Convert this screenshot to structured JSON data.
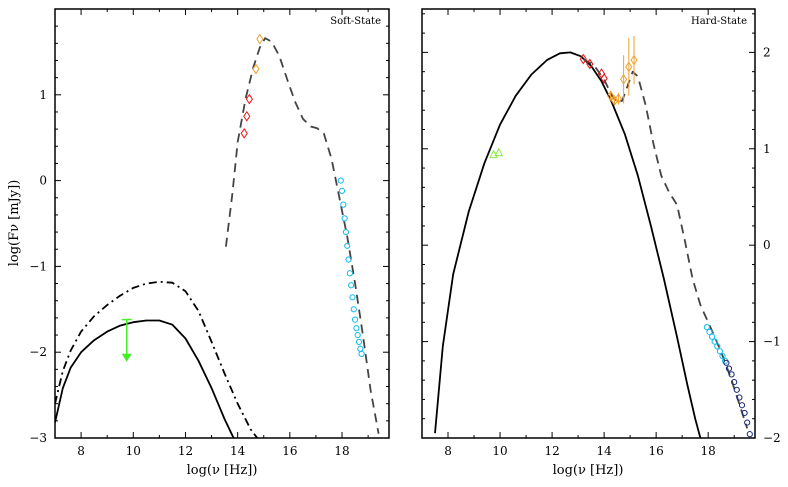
{
  "chart_data": [
    {
      "type": "scatter",
      "title": "Soft-State",
      "xlabel": "log(ν [Hz])",
      "ylabel": "log(Fν [mJy])",
      "xlim": [
        7,
        19.8
      ],
      "ylim": [
        -3,
        2.0
      ],
      "xticks": [
        8,
        10,
        12,
        14,
        16,
        18
      ],
      "xtick_labels": [
        "8",
        "10",
        "12",
        "14",
        "16",
        "18"
      ],
      "yticks": [
        -3,
        -2,
        -1,
        0,
        1
      ],
      "ytick_labels": [
        "−3",
        "−2",
        "−1",
        "0",
        "1"
      ],
      "y_axis_side": "left",
      "series": [
        {
          "name": "jet model (solid)",
          "style": "solid",
          "color": "#000000",
          "x": [
            7.0,
            7.3,
            7.6,
            8.0,
            8.5,
            9.0,
            9.5,
            10.0,
            10.5,
            11.0,
            11.5,
            12.0,
            12.5,
            13.0,
            13.5,
            14.0
          ],
          "y": [
            -2.82,
            -2.42,
            -2.18,
            -2.0,
            -1.86,
            -1.76,
            -1.69,
            -1.65,
            -1.63,
            -1.63,
            -1.68,
            -1.84,
            -2.1,
            -2.42,
            -2.78,
            -3.1
          ]
        },
        {
          "name": "jet model (dash-dot)",
          "style": "dashdot",
          "color": "#000000",
          "x": [
            7.0,
            7.3,
            7.6,
            8.0,
            8.5,
            9.0,
            9.5,
            10.0,
            10.5,
            11.0,
            11.5,
            12.0,
            12.5,
            13.0,
            13.5,
            14.0,
            14.5,
            15.0
          ],
          "y": [
            -2.6,
            -2.22,
            -1.98,
            -1.76,
            -1.58,
            -1.45,
            -1.34,
            -1.25,
            -1.2,
            -1.18,
            -1.19,
            -1.29,
            -1.52,
            -1.88,
            -2.25,
            -2.6,
            -2.9,
            -3.1
          ]
        },
        {
          "name": "total model (dashed)",
          "style": "dashed",
          "color": "#444444",
          "x": [
            13.55,
            13.8,
            14.0,
            14.3,
            14.6,
            14.85,
            15.05,
            15.3,
            15.6,
            15.9,
            16.2,
            16.5,
            16.8,
            17.05,
            17.3,
            17.6,
            17.9,
            18.2,
            18.5,
            18.8,
            19.1,
            19.4
          ],
          "y": [
            -0.77,
            -0.15,
            0.45,
            0.95,
            1.32,
            1.55,
            1.66,
            1.62,
            1.45,
            1.18,
            0.92,
            0.72,
            0.63,
            0.61,
            0.55,
            0.25,
            -0.2,
            -0.65,
            -1.2,
            -1.8,
            -2.45,
            -2.95
          ]
        },
        {
          "name": "radio upper limit",
          "marker": "arrow",
          "color": "#44ee22",
          "x": [
            9.75
          ],
          "y": [
            -1.62
          ],
          "y_end": [
            -2.1
          ]
        },
        {
          "name": "IR/optical (red)",
          "marker": "diamond",
          "color": "#ee1111",
          "x": [
            14.25,
            14.35,
            14.45
          ],
          "y": [
            0.55,
            0.75,
            0.95
          ]
        },
        {
          "name": "optical (orange)",
          "marker": "diamond",
          "color": "#f0a030",
          "x": [
            14.7,
            14.85
          ],
          "y": [
            1.3,
            1.65
          ]
        },
        {
          "name": "X-ray (cyan)",
          "marker": "circle",
          "color": "#11bbee",
          "x": [
            17.95,
            18.0,
            18.05,
            18.1,
            18.15,
            18.2,
            18.25,
            18.3,
            18.35,
            18.4,
            18.45,
            18.5,
            18.55,
            18.6,
            18.65,
            18.7,
            18.75
          ],
          "y": [
            0.0,
            -0.12,
            -0.28,
            -0.44,
            -0.6,
            -0.76,
            -0.92,
            -1.08,
            -1.22,
            -1.36,
            -1.5,
            -1.62,
            -1.72,
            -1.8,
            -1.88,
            -1.96,
            -2.02
          ]
        }
      ]
    },
    {
      "type": "scatter",
      "title": "Hard-State",
      "xlabel": "log(ν [Hz])",
      "ylabel": "",
      "xlim": [
        7,
        19.8
      ],
      "ylim": [
        -2,
        2.45
      ],
      "xticks": [
        8,
        10,
        12,
        14,
        16,
        18
      ],
      "xtick_labels": [
        "8",
        "10",
        "12",
        "14",
        "16",
        "18"
      ],
      "yticks": [
        -2,
        -1,
        0,
        1,
        2
      ],
      "ytick_labels": [
        "−2",
        "−1",
        "0",
        "1",
        "2"
      ],
      "y_axis_side": "right",
      "series": [
        {
          "name": "model (solid)",
          "style": "solid",
          "color": "#000000",
          "x": [
            7.5,
            7.8,
            8.2,
            8.8,
            9.4,
            10.0,
            10.6,
            11.2,
            11.8,
            12.3,
            12.7,
            13.1,
            13.5,
            13.9,
            14.3,
            14.8,
            15.3,
            15.8,
            16.3,
            16.8,
            17.2,
            17.5,
            17.75
          ],
          "y": [
            -1.95,
            -1.05,
            -0.3,
            0.35,
            0.85,
            1.25,
            1.55,
            1.77,
            1.92,
            1.99,
            2.0,
            1.96,
            1.86,
            1.7,
            1.48,
            1.15,
            0.72,
            0.2,
            -0.35,
            -0.95,
            -1.45,
            -1.8,
            -2.05
          ]
        },
        {
          "name": "model (dashed)",
          "style": "dashed",
          "color": "#444444",
          "x": [
            13.2,
            13.6,
            14.0,
            14.3,
            14.5,
            14.7,
            14.9,
            15.1,
            15.3,
            15.6,
            15.9,
            16.2,
            16.5,
            16.8,
            17.1,
            17.4,
            17.7,
            18.0,
            18.3,
            18.6,
            18.9,
            19.2,
            19.5
          ],
          "y": [
            1.93,
            1.87,
            1.72,
            1.55,
            1.48,
            1.5,
            1.65,
            1.8,
            1.75,
            1.45,
            1.05,
            0.72,
            0.55,
            0.42,
            0.05,
            -0.35,
            -0.62,
            -0.8,
            -0.98,
            -1.18,
            -1.4,
            -1.65,
            -1.9
          ]
        },
        {
          "name": "radio (green)",
          "marker": "triangle",
          "color": "#88ee44",
          "x": [
            9.75,
            9.95
          ],
          "y": [
            0.94,
            0.96
          ]
        },
        {
          "name": "IR (red)",
          "marker": "diamond",
          "color": "#ee1111",
          "x": [
            13.2,
            13.45,
            13.9,
            14.0
          ],
          "y": [
            1.93,
            1.88,
            1.78,
            1.73
          ]
        },
        {
          "name": "optical (orange)",
          "marker": "diamond",
          "color": "#f0a030",
          "x": [
            14.25,
            14.4,
            14.55,
            14.75,
            14.95,
            15.15
          ],
          "y": [
            1.55,
            1.5,
            1.52,
            1.72,
            1.85,
            1.92
          ],
          "err": [
            0.05,
            0.05,
            0.06,
            0.25,
            0.3,
            0.25
          ]
        },
        {
          "name": "X-ray soft (cyan)",
          "marker": "circle",
          "color": "#11bbee",
          "x": [
            17.95,
            18.05,
            18.15,
            18.25,
            18.35,
            18.45,
            18.55,
            18.65
          ],
          "y": [
            -0.85,
            -0.9,
            -0.95,
            -1.0,
            -1.05,
            -1.1,
            -1.15,
            -1.2
          ]
        },
        {
          "name": "X-ray hard (navy)",
          "marker": "circle",
          "color": "#1a2a7a",
          "x": [
            18.7,
            18.8,
            18.9,
            19.0,
            19.1,
            19.2,
            19.3,
            19.4,
            19.5,
            19.6
          ],
          "y": [
            -1.22,
            -1.28,
            -1.34,
            -1.42,
            -1.5,
            -1.58,
            -1.66,
            -1.74,
            -1.84,
            -1.96
          ]
        }
      ]
    }
  ]
}
